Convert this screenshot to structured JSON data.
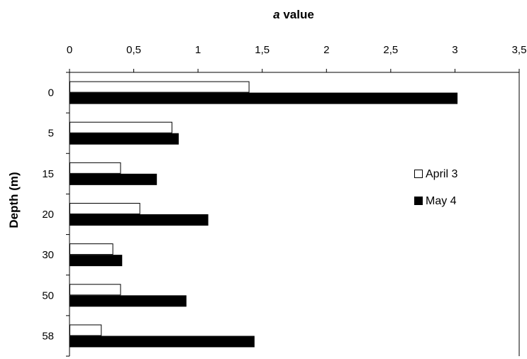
{
  "chart_data": {
    "type": "bar",
    "orientation": "horizontal",
    "xlabel_prefix": "a",
    "xlabel_suffix": " value",
    "ylabel": "Depth (m)",
    "categories": [
      "0",
      "5",
      "15",
      "20",
      "30",
      "50",
      "58"
    ],
    "xlim": [
      0,
      3.5
    ],
    "xticks": [
      0,
      0.5,
      1,
      1.5,
      2,
      2.5,
      3,
      3.5
    ],
    "xtick_labels": [
      "0",
      "0,5",
      "1",
      "1,5",
      "2",
      "2,5",
      "3",
      "3,5"
    ],
    "x_axis_position": "top",
    "grid": false,
    "legend_position": "right",
    "series": [
      {
        "name": "April 3",
        "fill": "#ffffff",
        "stroke": "#000000",
        "values": [
          1.4,
          0.8,
          0.4,
          0.55,
          0.34,
          0.4,
          0.25
        ]
      },
      {
        "name": "May 4",
        "fill": "#000000",
        "stroke": "#000000",
        "values": [
          3.02,
          0.85,
          0.68,
          1.08,
          0.41,
          0.91,
          1.44
        ]
      }
    ]
  }
}
